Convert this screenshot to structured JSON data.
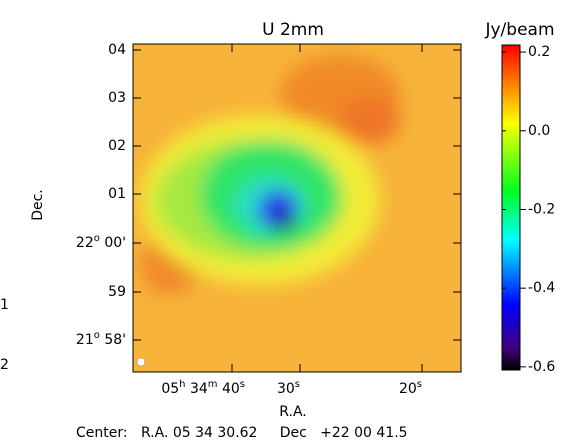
{
  "chart_data": {
    "type": "image-map",
    "title": "U 2mm",
    "colorbar_label": "Jy/beam",
    "xlabel": "R.A.",
    "ylabel": "Dec.",
    "xtick_labels": [
      {
        "parts": [
          "05",
          "h",
          " 34",
          "m",
          " 40",
          "s"
        ]
      },
      {
        "parts": [
          "30",
          "s"
        ]
      },
      {
        "parts": [
          "20",
          "s"
        ]
      }
    ],
    "ytick_labels": [
      {
        "parts": [
          "04"
        ]
      },
      {
        "parts": [
          "03"
        ]
      },
      {
        "parts": [
          "02"
        ]
      },
      {
        "parts": [
          "01"
        ]
      },
      {
        "parts": [
          "22",
          "o",
          " 00'"
        ]
      },
      {
        "parts": [
          "59"
        ]
      },
      {
        "parts": [
          "21",
          "o",
          " 58'"
        ]
      }
    ],
    "colorbar_lim": [
      -0.608,
      0.218
    ],
    "colorbar_ticks": [
      0.2,
      {
        "value": 0,
        "label": "0.0"
      },
      -0.2,
      -0.4,
      -0.6
    ],
    "center_text": "Center:   R.A. 05 34 30.62     Dec   +22 00 41.5",
    "edge_labels": [
      "1",
      "2"
    ]
  }
}
